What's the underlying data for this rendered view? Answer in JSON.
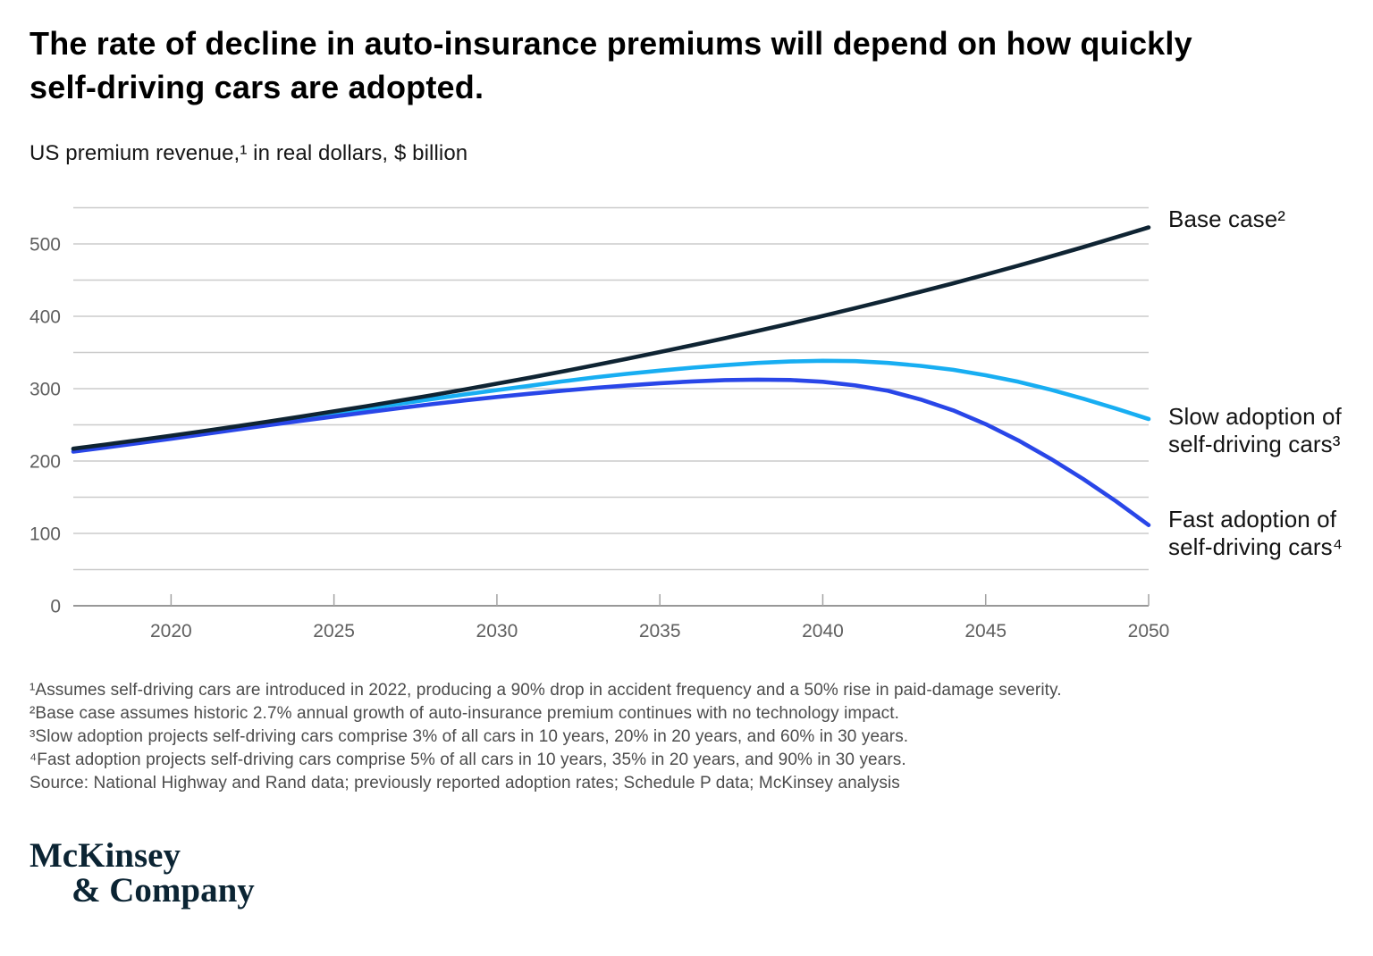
{
  "header": {
    "title_lines": [
      "The rate of decline in auto-insurance premiums will depend on how quickly",
      "self-driving cars are adopted."
    ],
    "subtitle": "US premium revenue,¹ in real dollars, $ billion"
  },
  "chart_data": {
    "type": "line",
    "title": "The rate of decline in auto-insurance premiums will depend on how quickly self-driving cars are adopted.",
    "ylabel": "US premium revenue, in real dollars, $ billion",
    "x": [
      2017,
      2018,
      2019,
      2020,
      2021,
      2022,
      2023,
      2024,
      2025,
      2026,
      2027,
      2028,
      2029,
      2030,
      2031,
      2032,
      2033,
      2034,
      2035,
      2036,
      2037,
      2038,
      2039,
      2040,
      2041,
      2042,
      2043,
      2044,
      2045,
      2046,
      2047,
      2048,
      2049,
      2050
    ],
    "series": [
      {
        "name": "base-case",
        "label": "Base case²",
        "color": "#0f2433",
        "values": [
          217,
          222.9,
          228.9,
          235.1,
          241.4,
          247.9,
          254.6,
          261.5,
          268.6,
          275.8,
          283.3,
          290.9,
          298.8,
          306.9,
          315.1,
          323.6,
          332.4,
          341.4,
          350.6,
          360,
          369.8,
          379.7,
          390,
          400.5,
          411.4,
          422.5,
          433.9,
          445.6,
          457.6,
          470,
          482.7,
          495.7,
          509.1,
          522.9
        ]
      },
      {
        "name": "slow-adoption",
        "label": "Slow adoption of self-driving cars³",
        "color": "#18aef2",
        "values": [
          216,
          222,
          228,
          234,
          240,
          246.5,
          253,
          259.5,
          266,
          272.5,
          279,
          285.5,
          292,
          298,
          304,
          310,
          315.5,
          320.5,
          325,
          329,
          332.5,
          335.5,
          337.5,
          338.5,
          338,
          335.5,
          331.5,
          326,
          318.5,
          309.5,
          298.5,
          286,
          272.5,
          258
        ]
      },
      {
        "name": "fast-adoption",
        "label": "Fast adoption of self-driving cars⁴",
        "color": "#2946e8",
        "values": [
          213,
          218.8,
          224.7,
          230.8,
          237,
          243.3,
          249.5,
          255.5,
          261.5,
          267.3,
          273,
          278.5,
          283.7,
          288.5,
          293,
          297.2,
          301,
          304.5,
          307.5,
          310,
          311.8,
          312.5,
          312,
          309.5,
          304.5,
          297,
          285,
          270,
          251,
          228.5,
          203,
          175,
          144.5,
          111.5
        ]
      }
    ],
    "xticks": [
      2020,
      2025,
      2030,
      2035,
      2040,
      2045,
      2050
    ],
    "ytick_labels": [
      0,
      100,
      200,
      300,
      400,
      500
    ],
    "xlim": [
      2017,
      2050
    ],
    "ylim": [
      0,
      550
    ],
    "gridline_step": 50,
    "grid": true,
    "legend_position": "right"
  },
  "footnotes": [
    "¹Assumes self-driving cars are introduced in 2022, producing a 90% drop in accident frequency and a 50% rise in paid-damage severity.",
    "²Base case assumes historic 2.7% annual growth of auto-insurance premium continues with no technology impact.",
    "³Slow adoption projects self-driving cars comprise 3% of all cars in 10 years, 20% in 20 years, and 60% in 30 years.",
    "⁴Fast adoption projects self-driving cars comprise 5% of all cars in 10 years, 35% in 20 years, and 90% in 30 years.",
    "Source: National Highway and Rand data; previously reported adoption rates; Schedule P data; McKinsey analysis"
  ],
  "logo": {
    "line1": "McKinsey",
    "line2": "& Company"
  },
  "colors": {
    "title": "#000000",
    "base_case_line": "#0f2433",
    "slow_adoption_line": "#18aef2",
    "fast_adoption_line": "#2946e8",
    "gridline": "#cbcbcb",
    "axis_line": "#898989",
    "tick_mark": "#a3a3a3",
    "tick_label": "#5f5f5f",
    "footnote_text": "#4c4c4c",
    "logo_text": "#0b2433"
  }
}
